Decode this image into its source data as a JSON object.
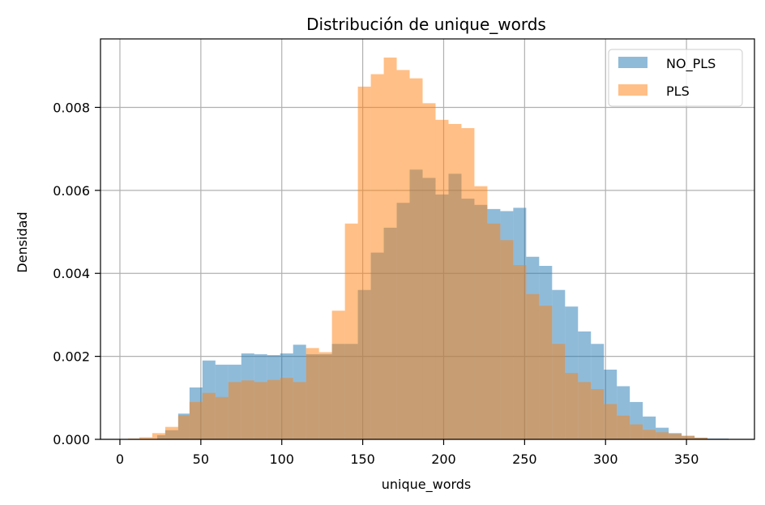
{
  "chart_data": {
    "type": "bar",
    "title": "Distribución de unique_words",
    "xlabel": "unique_words",
    "ylabel": "Densidad",
    "xlim": [
      -12,
      392
    ],
    "ylim": [
      0,
      0.00965
    ],
    "x_ticks": [
      0,
      50,
      100,
      150,
      200,
      250,
      300,
      350
    ],
    "x_tick_labels": [
      "0",
      "50",
      "100",
      "150",
      "200",
      "250",
      "300",
      "350"
    ],
    "y_ticks": [
      0,
      0.002,
      0.004,
      0.006,
      0.008
    ],
    "y_tick_labels": [
      "0.000",
      "0.002",
      "0.004",
      "0.006",
      "0.008"
    ],
    "grid": true,
    "legend_position": "top-right",
    "series": [
      {
        "name": "NO_PLS",
        "color": "#1f77b4",
        "alpha": 0.5,
        "bins": [
          [
            23,
            28,
            0.0001
          ],
          [
            28,
            36,
            0.00022
          ],
          [
            36,
            43,
            0.00062
          ],
          [
            43,
            51,
            0.00125
          ],
          [
            51,
            59,
            0.0019
          ],
          [
            59,
            67,
            0.0018
          ],
          [
            67,
            75,
            0.0018
          ],
          [
            75,
            83,
            0.00207
          ],
          [
            83,
            91,
            0.00205
          ],
          [
            91,
            99,
            0.00203
          ],
          [
            99,
            107,
            0.00207
          ],
          [
            107,
            115,
            0.00228
          ],
          [
            115,
            123,
            0.00205
          ],
          [
            123,
            131,
            0.00205
          ],
          [
            131,
            139,
            0.0023
          ],
          [
            139,
            147,
            0.0023
          ],
          [
            147,
            155,
            0.0036
          ],
          [
            155,
            163,
            0.0045
          ],
          [
            163,
            171,
            0.0051
          ],
          [
            171,
            179,
            0.0057
          ],
          [
            179,
            187,
            0.0065
          ],
          [
            187,
            195,
            0.0063
          ],
          [
            195,
            203,
            0.0059
          ],
          [
            203,
            211,
            0.0064
          ],
          [
            211,
            219,
            0.0058
          ],
          [
            219,
            227,
            0.00565
          ],
          [
            227,
            235,
            0.00555
          ],
          [
            235,
            243,
            0.0055
          ],
          [
            243,
            251,
            0.00558
          ],
          [
            251,
            259,
            0.0044
          ],
          [
            259,
            267,
            0.00418
          ],
          [
            267,
            275,
            0.0036
          ],
          [
            275,
            283,
            0.0032
          ],
          [
            283,
            291,
            0.0026
          ],
          [
            291,
            299,
            0.0023
          ],
          [
            299,
            307,
            0.00168
          ],
          [
            307,
            315,
            0.00128
          ],
          [
            315,
            323,
            0.0009
          ],
          [
            323,
            331,
            0.00055
          ],
          [
            331,
            339,
            0.00028
          ],
          [
            339,
            347,
            0.00015
          ],
          [
            347,
            355,
            8e-05
          ],
          [
            355,
            363,
            4e-05
          ],
          [
            363,
            376,
            2e-05
          ]
        ]
      },
      {
        "name": "PLS",
        "color": "#ff7f0e",
        "alpha": 0.5,
        "bins": [
          [
            5,
            12,
            2e-05
          ],
          [
            12,
            20,
            5e-05
          ],
          [
            20,
            28,
            0.00015
          ],
          [
            28,
            36,
            0.0003
          ],
          [
            36,
            43,
            0.00058
          ],
          [
            43,
            51,
            0.0009
          ],
          [
            51,
            59,
            0.00112
          ],
          [
            59,
            67,
            0.00102
          ],
          [
            67,
            75,
            0.00138
          ],
          [
            75,
            83,
            0.00142
          ],
          [
            83,
            91,
            0.00138
          ],
          [
            91,
            99,
            0.00143
          ],
          [
            99,
            107,
            0.00148
          ],
          [
            107,
            115,
            0.00138
          ],
          [
            115,
            123,
            0.0022
          ],
          [
            123,
            131,
            0.0021
          ],
          [
            131,
            139,
            0.0031
          ],
          [
            139,
            147,
            0.0052
          ],
          [
            147,
            155,
            0.0085
          ],
          [
            155,
            163,
            0.0088
          ],
          [
            163,
            171,
            0.0092
          ],
          [
            171,
            179,
            0.0089
          ],
          [
            179,
            187,
            0.0087
          ],
          [
            187,
            195,
            0.0081
          ],
          [
            195,
            203,
            0.0077
          ],
          [
            203,
            211,
            0.0076
          ],
          [
            211,
            219,
            0.0075
          ],
          [
            219,
            227,
            0.0061
          ],
          [
            227,
            235,
            0.0052
          ],
          [
            235,
            243,
            0.0048
          ],
          [
            243,
            251,
            0.0042
          ],
          [
            251,
            259,
            0.0035
          ],
          [
            259,
            267,
            0.00322
          ],
          [
            267,
            275,
            0.0023
          ],
          [
            275,
            283,
            0.0016
          ],
          [
            283,
            291,
            0.00138
          ],
          [
            291,
            299,
            0.00121
          ],
          [
            299,
            307,
            0.00085
          ],
          [
            307,
            315,
            0.00057
          ],
          [
            315,
            323,
            0.00036
          ],
          [
            323,
            331,
            0.00023
          ],
          [
            331,
            339,
            0.00017
          ],
          [
            339,
            347,
            0.00013
          ],
          [
            347,
            355,
            9e-05
          ],
          [
            355,
            363,
            4e-05
          ]
        ]
      }
    ]
  }
}
